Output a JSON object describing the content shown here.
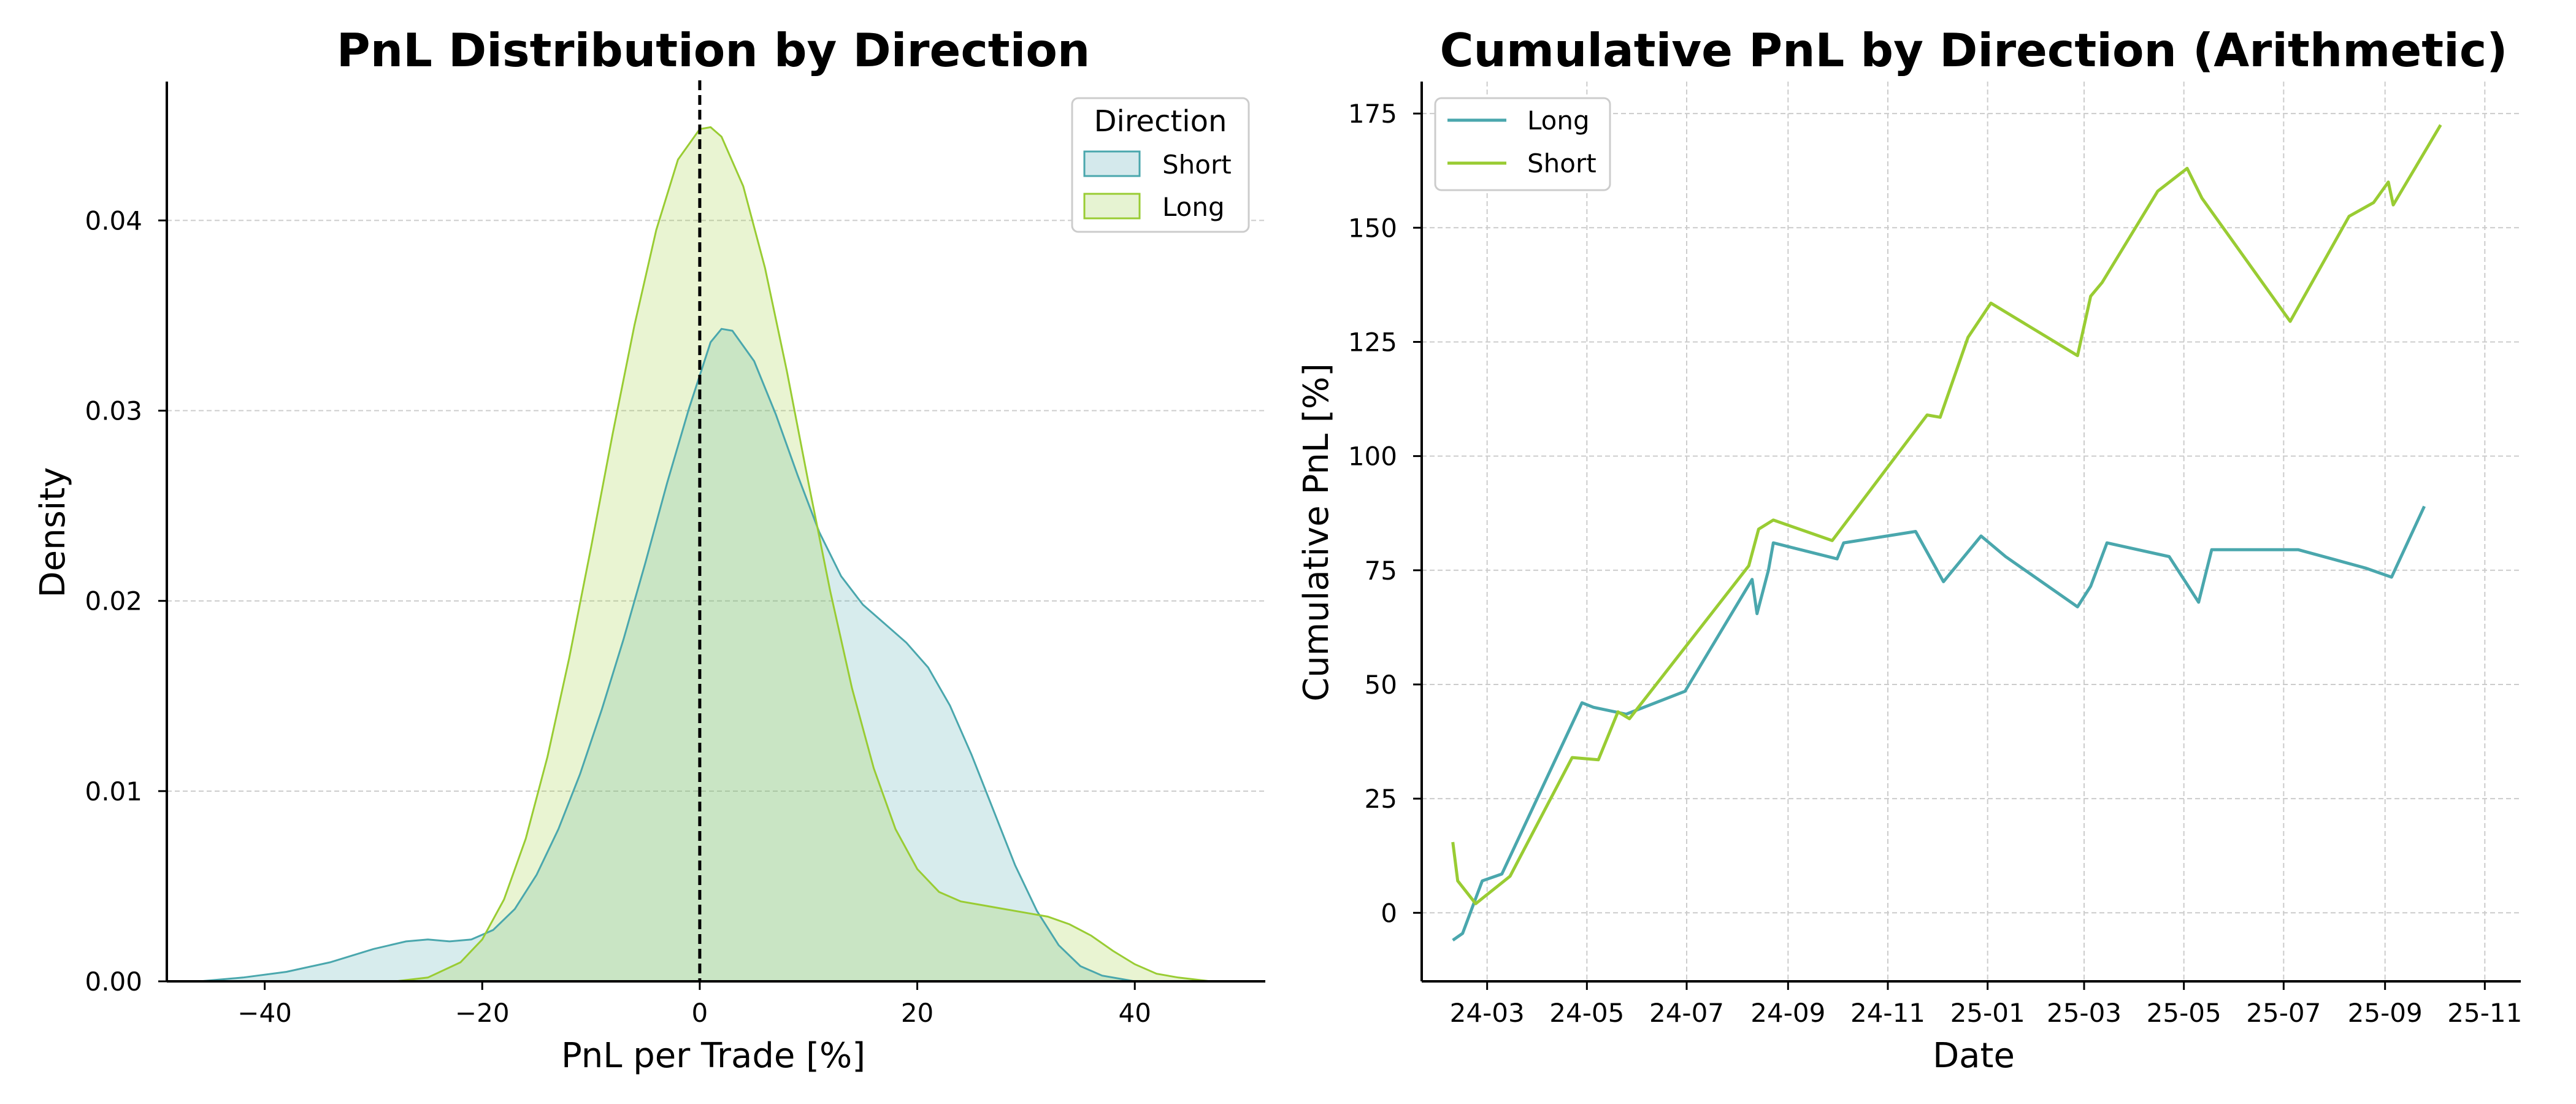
{
  "colors": {
    "teal": "#4aa7ad",
    "lime": "#99cc33",
    "teal_fill": "#d4e9ec",
    "lime_fill": "#e6f3d2",
    "grid": "#cccccc",
    "zero_line": "#000000"
  },
  "chart_data": [
    {
      "type": "area",
      "title": "PnL Distribution by Direction",
      "xlabel": "PnL per Trade [%]",
      "ylabel": "Density",
      "xlim": [
        -49,
        52
      ],
      "ylim": [
        0,
        0.0473
      ],
      "x_ticks": [
        -40,
        -20,
        0,
        20,
        40
      ],
      "x_tick_labels": [
        "−40",
        "−20",
        "0",
        "20",
        "40"
      ],
      "y_ticks": [
        0,
        0.01,
        0.02,
        0.03,
        0.04
      ],
      "y_tick_labels": [
        "0.00",
        "0.01",
        "0.02",
        "0.03",
        "0.04"
      ],
      "grid": "y",
      "reference_line_x": 0,
      "legend": {
        "title": "Direction",
        "position": "top-right",
        "entries": [
          "Short",
          "Long"
        ]
      },
      "series": [
        {
          "name": "Short",
          "color": "#4aa7ad",
          "points": [
            [
              -46,
              0
            ],
            [
              -42,
              0.0002
            ],
            [
              -38,
              0.0005
            ],
            [
              -34,
              0.001
            ],
            [
              -30,
              0.0017
            ],
            [
              -27,
              0.0021
            ],
            [
              -25,
              0.0022
            ],
            [
              -23,
              0.0021
            ],
            [
              -21,
              0.0022
            ],
            [
              -19,
              0.0027
            ],
            [
              -17,
              0.0038
            ],
            [
              -15,
              0.0056
            ],
            [
              -13,
              0.008
            ],
            [
              -11,
              0.0109
            ],
            [
              -9,
              0.0143
            ],
            [
              -7,
              0.018
            ],
            [
              -5,
              0.022
            ],
            [
              -3,
              0.0262
            ],
            [
              -1,
              0.0301
            ],
            [
              1,
              0.0336
            ],
            [
              2,
              0.0343
            ],
            [
              3,
              0.0342
            ],
            [
              5,
              0.0326
            ],
            [
              7,
              0.0298
            ],
            [
              9,
              0.0266
            ],
            [
              11,
              0.0236
            ],
            [
              13,
              0.0213
            ],
            [
              15,
              0.0198
            ],
            [
              17,
              0.0188
            ],
            [
              19,
              0.0178
            ],
            [
              21,
              0.0165
            ],
            [
              23,
              0.0145
            ],
            [
              25,
              0.0119
            ],
            [
              27,
              0.009
            ],
            [
              29,
              0.0061
            ],
            [
              31,
              0.0037
            ],
            [
              33,
              0.0019
            ],
            [
              35,
              0.0008
            ],
            [
              37,
              0.0003
            ],
            [
              40,
              0
            ]
          ]
        },
        {
          "name": "Long",
          "color": "#99cc33",
          "points": [
            [
              -28,
              0
            ],
            [
              -25,
              0.0002
            ],
            [
              -22,
              0.001
            ],
            [
              -20,
              0.0022
            ],
            [
              -18,
              0.0043
            ],
            [
              -16,
              0.0075
            ],
            [
              -14,
              0.0118
            ],
            [
              -12,
              0.017
            ],
            [
              -10,
              0.0228
            ],
            [
              -8,
              0.0288
            ],
            [
              -6,
              0.0345
            ],
            [
              -4,
              0.0395
            ],
            [
              -2,
              0.0432
            ],
            [
              0,
              0.0448
            ],
            [
              1,
              0.0449
            ],
            [
              2,
              0.0444
            ],
            [
              4,
              0.0418
            ],
            [
              6,
              0.0375
            ],
            [
              8,
              0.0321
            ],
            [
              10,
              0.0262
            ],
            [
              12,
              0.0205
            ],
            [
              14,
              0.0154
            ],
            [
              16,
              0.0112
            ],
            [
              18,
              0.008
            ],
            [
              20,
              0.0059
            ],
            [
              22,
              0.0047
            ],
            [
              24,
              0.0042
            ],
            [
              26,
              0.004
            ],
            [
              28,
              0.0038
            ],
            [
              30,
              0.0036
            ],
            [
              32,
              0.0034
            ],
            [
              34,
              0.003
            ],
            [
              36,
              0.0024
            ],
            [
              38,
              0.0016
            ],
            [
              40,
              0.0009
            ],
            [
              42,
              0.0004
            ],
            [
              44,
              0.0002
            ],
            [
              47,
              0
            ]
          ]
        }
      ]
    },
    {
      "type": "line",
      "title": "Cumulative PnL by Direction (Arithmetic)",
      "xlabel": "Date",
      "ylabel": "Cumulative PnL [%]",
      "x_domain": [
        "2024-01-21",
        "2025-11-23"
      ],
      "ylim": [
        -15,
        182
      ],
      "x_ticks": [
        "2024-03-01",
        "2024-05-01",
        "2024-07-01",
        "2024-09-01",
        "2024-11-01",
        "2025-01-01",
        "2025-03-01",
        "2025-05-01",
        "2025-07-01",
        "2025-09-01",
        "2025-11-01"
      ],
      "x_tick_labels": [
        "24-03",
        "24-05",
        "24-07",
        "24-09",
        "24-11",
        "25-01",
        "25-03",
        "25-05",
        "25-07",
        "25-09",
        "25-11"
      ],
      "y_ticks": [
        0,
        25,
        50,
        75,
        100,
        125,
        150,
        175
      ],
      "y_tick_labels": [
        "0",
        "25",
        "50",
        "75",
        "100",
        "125",
        "150",
        "175"
      ],
      "grid": "both",
      "legend": {
        "position": "top-left",
        "entries": [
          "Long",
          "Short"
        ]
      },
      "series": [
        {
          "name": "Long",
          "color": "#4aa7ad",
          "points": [
            [
              "2024-02-09",
              -6
            ],
            [
              "2024-02-15",
              -4.5
            ],
            [
              "2024-02-27",
              7
            ],
            [
              "2024-03-10",
              8.5
            ],
            [
              "2024-04-28",
              46
            ],
            [
              "2024-05-05",
              45
            ],
            [
              "2024-05-25",
              43.5
            ],
            [
              "2024-06-30",
              48.5
            ],
            [
              "2024-08-10",
              73
            ],
            [
              "2024-08-13",
              65.5
            ],
            [
              "2024-08-20",
              75
            ],
            [
              "2024-08-23",
              81
            ],
            [
              "2024-10-01",
              77.5
            ],
            [
              "2024-10-05",
              81
            ],
            [
              "2024-11-18",
              83.5
            ],
            [
              "2024-12-05",
              72.5
            ],
            [
              "2024-12-28",
              82.5
            ],
            [
              "2025-01-12",
              78
            ],
            [
              "2025-02-25",
              67
            ],
            [
              "2025-03-05",
              71.5
            ],
            [
              "2025-03-15",
              81
            ],
            [
              "2025-04-22",
              78
            ],
            [
              "2025-05-10",
              68
            ],
            [
              "2025-05-18",
              79.5
            ],
            [
              "2025-07-10",
              79.5
            ],
            [
              "2025-08-20",
              75.5
            ],
            [
              "2025-09-05",
              73.5
            ],
            [
              "2025-09-25",
              89
            ]
          ]
        },
        {
          "name": "Short",
          "color": "#99cc33",
          "points": [
            [
              "2024-02-09",
              15.5
            ],
            [
              "2024-02-12",
              7
            ],
            [
              "2024-02-23",
              2
            ],
            [
              "2024-03-15",
              8
            ],
            [
              "2024-04-22",
              34
            ],
            [
              "2024-05-08",
              33.5
            ],
            [
              "2024-05-20",
              44
            ],
            [
              "2024-05-27",
              42.5
            ],
            [
              "2024-08-08",
              76
            ],
            [
              "2024-08-14",
              84
            ],
            [
              "2024-08-23",
              86
            ],
            [
              "2024-09-28",
              81.5
            ],
            [
              "2024-11-25",
              109
            ],
            [
              "2024-12-03",
              108.5
            ],
            [
              "2024-12-20",
              126
            ],
            [
              "2025-01-03",
              133.5
            ],
            [
              "2025-02-25",
              122
            ],
            [
              "2025-03-05",
              135
            ],
            [
              "2025-03-12",
              138
            ],
            [
              "2025-04-15",
              158
            ],
            [
              "2025-05-03",
              163
            ],
            [
              "2025-05-12",
              156.5
            ],
            [
              "2025-07-05",
              129.5
            ],
            [
              "2025-08-10",
              152.5
            ],
            [
              "2025-08-25",
              155.5
            ],
            [
              "2025-09-03",
              160
            ],
            [
              "2025-09-06",
              155
            ],
            [
              "2025-10-05",
              172.5
            ]
          ]
        }
      ]
    }
  ]
}
